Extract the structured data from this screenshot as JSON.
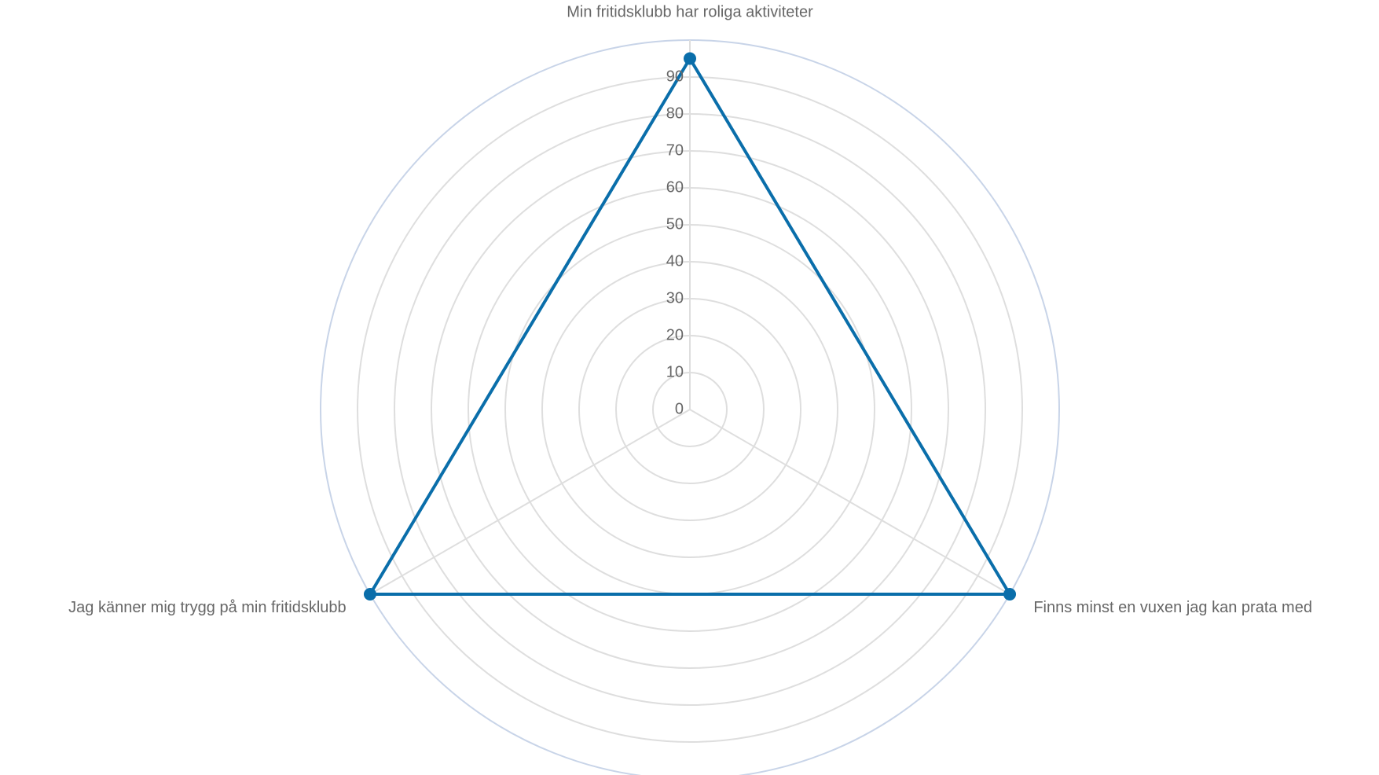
{
  "chart_data": {
    "type": "radar",
    "axes": [
      "Min fritidsklubb har roliga aktiviteter",
      "Finns minst en vuxen jag kan prata med",
      "Jag känner mig trygg på min fritidsklubb"
    ],
    "series": [
      {
        "values": [
          95,
          100,
          100
        ],
        "color": "#0a6eaa"
      }
    ],
    "r_ticks": [
      0,
      10,
      20,
      30,
      40,
      50,
      60,
      70,
      80,
      90
    ],
    "r_min": 0,
    "r_max": 100,
    "grid_color": "#dedede",
    "outer_ring_color": "#c8d4e8",
    "label_color": "#666666"
  }
}
